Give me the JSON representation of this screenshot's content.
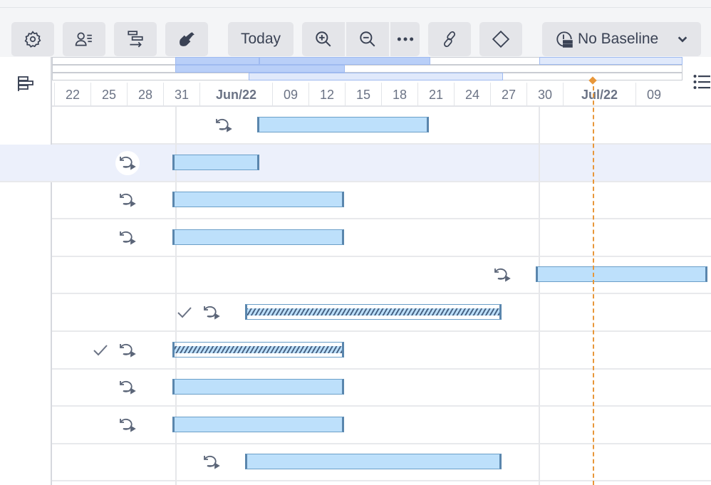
{
  "toolbar": {
    "buttons": [
      {
        "name": "settings-button",
        "icon": "gear-icon"
      },
      {
        "name": "resources-button",
        "icon": "user-list-icon"
      },
      {
        "name": "auto-schedule-button",
        "icon": "gantt-arrow-icon"
      },
      {
        "name": "cleanup-button",
        "icon": "shovel-icon"
      }
    ],
    "today_label": "Today",
    "zoom_in": "zoom-in-icon",
    "zoom_out": "zoom-out-icon",
    "more": "more-icon",
    "link": "link-icon",
    "milestone": "diamond-icon",
    "baseline_label": "No Baseline"
  },
  "timeline": {
    "origin": "2022-05-22",
    "ticks": [
      "22",
      "25",
      "28",
      "31",
      "Jun/22",
      "09",
      "12",
      "15",
      "18",
      "21",
      "24",
      "27",
      "30",
      "Jul/22",
      "09"
    ],
    "today": "2022-07-05",
    "colors": {
      "bar": "#bde0fb",
      "bar_border": "#5a86ad",
      "today": "#e8973a",
      "overview": "#b9cff8",
      "overview_light": "#e0e9fb"
    }
  },
  "rows": [
    {
      "start": "2022-06-08",
      "end": "2022-06-22",
      "done": false,
      "hatched": false
    },
    {
      "start": "2022-06-01",
      "end": "2022-06-08",
      "done": false,
      "hatched": false,
      "selected": true
    },
    {
      "start": "2022-06-01",
      "end": "2022-06-15",
      "done": false,
      "hatched": false
    },
    {
      "start": "2022-06-01",
      "end": "2022-06-15",
      "done": false,
      "hatched": false
    },
    {
      "start": "2022-07-01",
      "end": "2022-07-15",
      "done": false,
      "hatched": false
    },
    {
      "start": "2022-06-07",
      "end": "2022-06-28",
      "done": true,
      "hatched": true
    },
    {
      "start": "2022-06-01",
      "end": "2022-06-15",
      "done": true,
      "hatched": true
    },
    {
      "start": "2022-06-01",
      "end": "2022-06-15",
      "done": false,
      "hatched": false
    },
    {
      "start": "2022-06-01",
      "end": "2022-06-15",
      "done": false,
      "hatched": false
    },
    {
      "start": "2022-06-07",
      "end": "2022-06-28",
      "done": false,
      "hatched": false
    }
  ]
}
